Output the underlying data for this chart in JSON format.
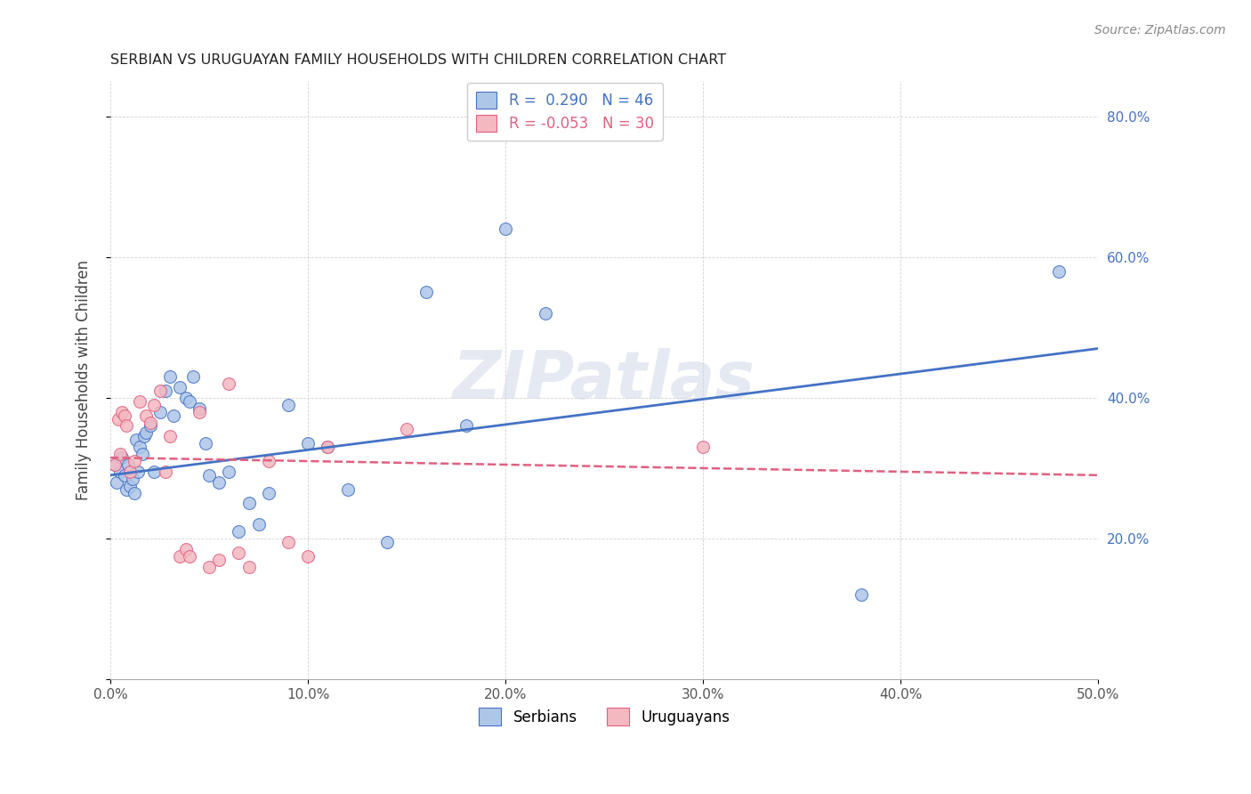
{
  "title": "SERBIAN VS URUGUAYAN FAMILY HOUSEHOLDS WITH CHILDREN CORRELATION CHART",
  "source": "Source: ZipAtlas.com",
  "ylabel": "Family Households with Children",
  "xlim": [
    0.0,
    0.5
  ],
  "ylim": [
    0.0,
    0.85
  ],
  "xticks": [
    0.0,
    0.1,
    0.2,
    0.3,
    0.4,
    0.5
  ],
  "yticks": [
    0.0,
    0.2,
    0.4,
    0.6,
    0.8
  ],
  "xticklabels": [
    "0.0%",
    "10.0%",
    "20.0%",
    "30.0%",
    "40.0%",
    "50.0%"
  ],
  "yticklabels": [
    "",
    "20.0%",
    "40.0%",
    "60.0%",
    "80.0%"
  ],
  "serbian_R": 0.29,
  "serbian_N": 46,
  "uruguayan_R": -0.053,
  "uruguayan_N": 30,
  "serbian_color": "#aec6e8",
  "uruguayan_color": "#f4b8c1",
  "serbian_line_color": "#4472c4",
  "uruguayan_line_color": "#e06080",
  "watermark": "ZIPatlas",
  "serbian_trend_x0": 0.0,
  "serbian_trend_y0": 0.29,
  "serbian_trend_x1": 0.5,
  "serbian_trend_y1": 0.47,
  "uruguayan_trend_x0": 0.0,
  "uruguayan_trend_y0": 0.315,
  "uruguayan_trend_x1": 0.5,
  "uruguayan_trend_y1": 0.29,
  "serbian_x": [
    0.002,
    0.003,
    0.005,
    0.006,
    0.007,
    0.008,
    0.009,
    0.01,
    0.011,
    0.012,
    0.013,
    0.014,
    0.015,
    0.016,
    0.017,
    0.018,
    0.02,
    0.022,
    0.025,
    0.028,
    0.03,
    0.032,
    0.035,
    0.038,
    0.04,
    0.042,
    0.045,
    0.048,
    0.05,
    0.055,
    0.06,
    0.065,
    0.07,
    0.075,
    0.08,
    0.09,
    0.1,
    0.11,
    0.12,
    0.14,
    0.16,
    0.18,
    0.2,
    0.22,
    0.38,
    0.48
  ],
  "serbian_y": [
    0.305,
    0.28,
    0.295,
    0.315,
    0.29,
    0.27,
    0.305,
    0.275,
    0.285,
    0.265,
    0.34,
    0.295,
    0.33,
    0.32,
    0.345,
    0.35,
    0.36,
    0.295,
    0.38,
    0.41,
    0.43,
    0.375,
    0.415,
    0.4,
    0.395,
    0.43,
    0.385,
    0.335,
    0.29,
    0.28,
    0.295,
    0.21,
    0.25,
    0.22,
    0.265,
    0.39,
    0.335,
    0.33,
    0.27,
    0.195,
    0.55,
    0.36,
    0.64,
    0.52,
    0.12,
    0.58
  ],
  "uruguayan_x": [
    0.002,
    0.004,
    0.005,
    0.006,
    0.007,
    0.008,
    0.01,
    0.012,
    0.015,
    0.018,
    0.02,
    0.022,
    0.025,
    0.028,
    0.03,
    0.035,
    0.038,
    0.04,
    0.045,
    0.05,
    0.055,
    0.06,
    0.065,
    0.07,
    0.08,
    0.09,
    0.1,
    0.11,
    0.15,
    0.3
  ],
  "uruguayan_y": [
    0.305,
    0.37,
    0.32,
    0.38,
    0.375,
    0.36,
    0.295,
    0.31,
    0.395,
    0.375,
    0.365,
    0.39,
    0.41,
    0.295,
    0.345,
    0.175,
    0.185,
    0.175,
    0.38,
    0.16,
    0.17,
    0.42,
    0.18,
    0.16,
    0.31,
    0.195,
    0.175,
    0.33,
    0.355,
    0.33
  ]
}
